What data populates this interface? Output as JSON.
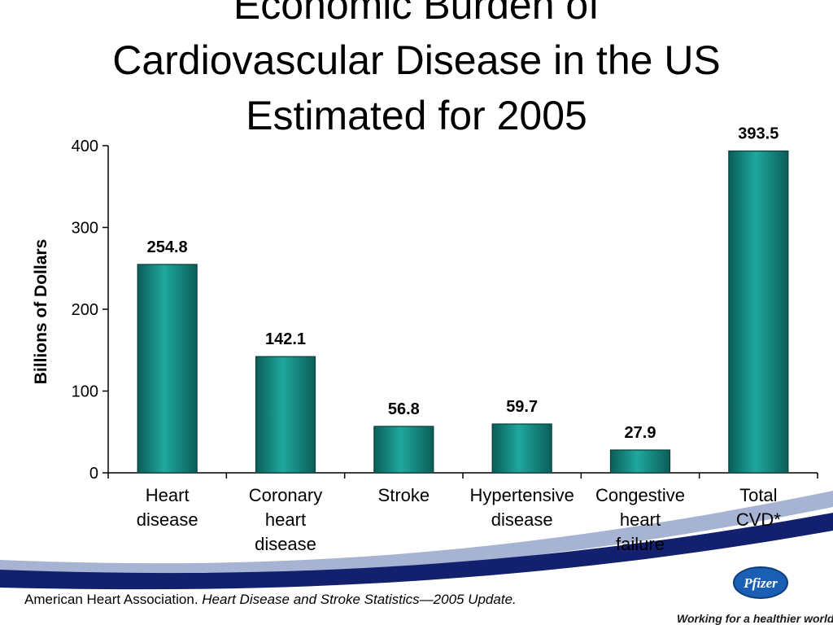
{
  "slide": {
    "title_lines": [
      "Economic Burden of",
      "Cardiovascular Disease in the US",
      "Estimated for 2005"
    ],
    "citation_plain": "American Heart Association. ",
    "citation_italic": "Heart Disease and Stroke Statistics—2005 Update.",
    "brand": "Pfizer",
    "tagline": "Working for a healthier world"
  },
  "chart_data": {
    "type": "bar",
    "categories": [
      [
        "Heart",
        "disease"
      ],
      [
        "Coronary",
        "heart",
        "disease"
      ],
      [
        "Stroke"
      ],
      [
        "Hypertensive",
        "disease"
      ],
      [
        "Congestive",
        "heart",
        "failure"
      ],
      [
        "Total",
        "CVD*"
      ]
    ],
    "values": [
      254.8,
      142.1,
      56.8,
      59.7,
      27.9,
      393.5
    ],
    "value_labels": [
      "254.8",
      "142.1",
      "56.8",
      "59.7",
      "27.9",
      "393.5"
    ],
    "ylabel": "Billions of Dollars",
    "xlabel": "",
    "ylim": [
      0,
      400
    ],
    "yticks": [
      0,
      100,
      200,
      300,
      400
    ],
    "grid": false,
    "bar_color_dark": "#0a5e58",
    "bar_color_light": "#1fa89e"
  }
}
